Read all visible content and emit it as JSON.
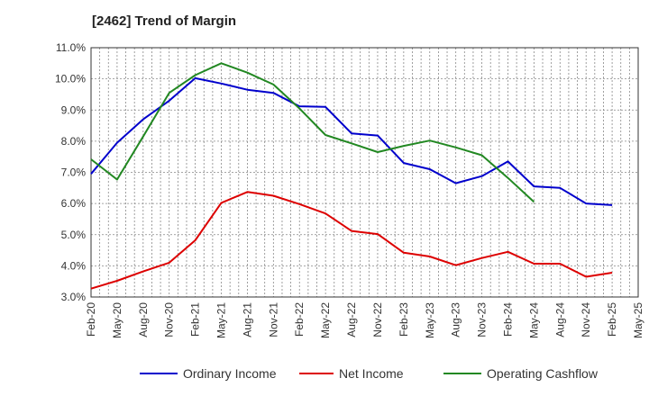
{
  "chart_data": {
    "type": "line",
    "title": "[2462]  Trend of Margin",
    "xlabel": "",
    "ylabel": "",
    "ylim": [
      3.0,
      11.0
    ],
    "yticks": [
      "3.0%",
      "4.0%",
      "5.0%",
      "6.0%",
      "7.0%",
      "8.0%",
      "9.0%",
      "10.0%",
      "11.0%"
    ],
    "categories": [
      "Feb-20",
      "May-20",
      "Aug-20",
      "Nov-20",
      "Feb-21",
      "May-21",
      "Aug-21",
      "Nov-21",
      "Feb-22",
      "May-22",
      "Aug-22",
      "Nov-22",
      "Feb-23",
      "May-23",
      "Aug-23",
      "Nov-23",
      "Feb-24",
      "May-24",
      "Aug-24",
      "Nov-24",
      "Feb-25",
      "May-25"
    ],
    "grid": true,
    "legend_position": "bottom",
    "series": [
      {
        "name": "Ordinary Income",
        "color": "#0000cc",
        "values": [
          6.95,
          7.95,
          8.7,
          9.3,
          10.02,
          9.85,
          9.65,
          9.55,
          9.12,
          9.1,
          8.25,
          8.18,
          7.3,
          7.1,
          6.65,
          6.88,
          7.35,
          6.55,
          6.5,
          6.0,
          5.95,
          null
        ]
      },
      {
        "name": "Net Income",
        "color": "#dd0000",
        "values": [
          3.27,
          3.52,
          3.82,
          4.1,
          4.82,
          6.02,
          6.37,
          6.25,
          5.98,
          5.68,
          5.12,
          5.02,
          4.42,
          4.3,
          4.02,
          4.25,
          4.45,
          4.07,
          4.07,
          3.65,
          3.78,
          null
        ]
      },
      {
        "name": "Operating Cashflow",
        "color": "#228822",
        "values": [
          7.42,
          6.77,
          8.15,
          9.55,
          10.12,
          10.5,
          10.2,
          9.82,
          9.05,
          8.2,
          7.93,
          7.65,
          7.85,
          8.02,
          7.8,
          7.55,
          6.82,
          6.05,
          null,
          null,
          null,
          null
        ]
      }
    ]
  }
}
